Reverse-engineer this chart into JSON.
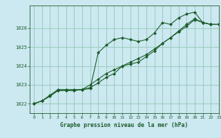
{
  "title": "Graphe pression niveau de la mer (hPa)",
  "background_color": "#cce8f0",
  "grid_color": "#99ccbb",
  "line_color": "#1a5c2a",
  "xlim": [
    -0.5,
    23
  ],
  "ylim": [
    1021.5,
    1027.2
  ],
  "yticks": [
    1022,
    1023,
    1024,
    1025,
    1026
  ],
  "xticks": [
    0,
    1,
    2,
    3,
    4,
    5,
    6,
    7,
    8,
    9,
    10,
    11,
    12,
    13,
    14,
    15,
    16,
    17,
    18,
    19,
    20,
    21,
    22,
    23
  ],
  "series1_x": [
    0,
    1,
    2,
    3,
    4,
    5,
    6,
    7,
    8,
    9,
    10,
    11,
    12,
    13,
    14,
    15,
    16,
    17,
    18,
    19,
    20,
    21,
    22,
    23
  ],
  "series1_y": [
    1022.0,
    1022.15,
    1022.4,
    1022.7,
    1022.7,
    1022.7,
    1022.75,
    1022.8,
    1024.7,
    1025.1,
    1025.4,
    1025.5,
    1025.4,
    1025.3,
    1025.4,
    1025.75,
    1026.3,
    1026.2,
    1026.55,
    1026.75,
    1026.85,
    1026.3,
    1026.2,
    1026.2
  ],
  "series2_x": [
    0,
    1,
    2,
    3,
    4,
    5,
    6,
    7,
    8,
    9,
    10,
    11,
    12,
    13,
    14,
    15,
    16,
    17,
    18,
    19,
    20,
    21,
    22,
    23
  ],
  "series2_y": [
    1022.0,
    1022.15,
    1022.4,
    1022.7,
    1022.7,
    1022.7,
    1022.75,
    1023.0,
    1023.3,
    1023.6,
    1023.8,
    1024.0,
    1024.1,
    1024.2,
    1024.5,
    1024.8,
    1025.2,
    1025.5,
    1025.85,
    1026.2,
    1026.5,
    1026.3,
    1026.2,
    1026.2
  ],
  "series3_x": [
    0,
    1,
    2,
    3,
    4,
    5,
    6,
    7,
    8,
    9,
    10,
    11,
    12,
    13,
    14,
    15,
    16,
    17,
    18,
    19,
    20,
    21,
    22,
    23
  ],
  "series3_y": [
    1022.0,
    1022.15,
    1022.45,
    1022.75,
    1022.75,
    1022.75,
    1022.75,
    1022.85,
    1023.1,
    1023.4,
    1023.6,
    1024.0,
    1024.2,
    1024.4,
    1024.6,
    1024.9,
    1025.2,
    1025.5,
    1025.8,
    1026.1,
    1026.45,
    1026.3,
    1026.2,
    1026.2
  ]
}
